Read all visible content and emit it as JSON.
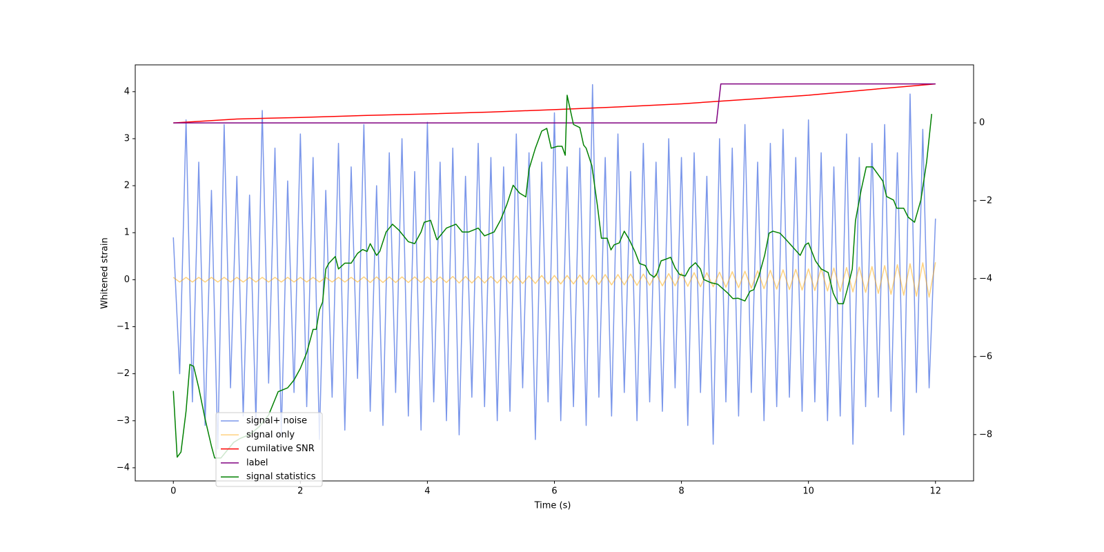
{
  "chart_data": {
    "type": "line",
    "xlabel": "Time (s)",
    "ylabel": "Whitened strain",
    "xlim": [
      -0.6,
      12.6
    ],
    "xticks": [
      0,
      2,
      4,
      6,
      8,
      10,
      12
    ],
    "ylim": [
      -4.28,
      4.57
    ],
    "yticks": [
      {
        "value": -4,
        "label": "−4"
      },
      {
        "value": -3,
        "label": "−3"
      },
      {
        "value": -2,
        "label": "−2"
      },
      {
        "value": -1,
        "label": "−1"
      },
      0,
      1,
      2,
      3,
      4
    ],
    "y2lim": [
      -9.19,
      1.49
    ],
    "y2ticks": [
      {
        "value": -8,
        "label": "−8"
      },
      {
        "value": -6,
        "label": "−6"
      },
      {
        "value": -4,
        "label": "−4"
      },
      {
        "value": -2,
        "label": "−2"
      },
      0
    ],
    "x": [
      0,
      0.1,
      0.2,
      0.3,
      0.4,
      0.5,
      0.6,
      0.7,
      0.8,
      0.9,
      1,
      1.1,
      1.2,
      1.3,
      1.4,
      1.5,
      1.6,
      1.7,
      1.8,
      1.9,
      2,
      2.1,
      2.2,
      2.3,
      2.4,
      2.5,
      2.6,
      2.7,
      2.8,
      2.9,
      3,
      3.1,
      3.2,
      3.3,
      3.4,
      3.5,
      3.6,
      3.7,
      3.8,
      3.9,
      4,
      4.1,
      4.2,
      4.3,
      4.4,
      4.5,
      4.6,
      4.7,
      4.8,
      4.9,
      5,
      5.1,
      5.2,
      5.3,
      5.4,
      5.5,
      5.6,
      5.7,
      5.8,
      5.9,
      6,
      6.1,
      6.2,
      6.3,
      6.4,
      6.5,
      6.6,
      6.7,
      6.8,
      6.9,
      7,
      7.1,
      7.2,
      7.3,
      7.4,
      7.5,
      7.6,
      7.7,
      7.8,
      7.9,
      8,
      8.1,
      8.2,
      8.3,
      8.4,
      8.5,
      8.6,
      8.7,
      8.8,
      8.9,
      9,
      9.1,
      9.2,
      9.3,
      9.4,
      9.5,
      9.6,
      9.7,
      9.8,
      9.9,
      10,
      10.1,
      10.2,
      10.3,
      10.4,
      10.5,
      10.6,
      10.7,
      10.8,
      10.9,
      11,
      11.1,
      11.2,
      11.3,
      11.4,
      11.5,
      11.6,
      11.7,
      11.8,
      11.9,
      12
    ],
    "series": [
      {
        "name": "signal+ noise",
        "color": "#4169e1",
        "opacity": 0.7,
        "values": [
          0.9,
          -2.0,
          3.4,
          -2.6,
          2.5,
          -3.1,
          1.9,
          -3.6,
          3.3,
          -2.3,
          2.2,
          -2.9,
          1.8,
          -3.0,
          3.6,
          -2.2,
          2.8,
          -3.3,
          2.1,
          -2.4,
          3.1,
          -2.7,
          2.6,
          -3.4,
          1.9,
          -2.5,
          2.9,
          -3.2,
          2.4,
          -2.1,
          3.3,
          -2.8,
          2.0,
          -3.1,
          2.7,
          -2.4,
          3.0,
          -2.9,
          2.3,
          -3.2,
          3.35,
          -2.6,
          2.5,
          -3.0,
          2.8,
          -3.3,
          2.2,
          -2.5,
          2.9,
          -2.7,
          2.6,
          -3.0,
          2.4,
          -2.8,
          3.1,
          -2.3,
          2.7,
          -3.4,
          2.5,
          -2.6,
          3.55,
          -3.0,
          2.4,
          -2.7,
          2.8,
          -3.1,
          4.15,
          -2.5,
          2.6,
          -2.9,
          3.1,
          -2.4,
          2.3,
          -3.0,
          2.9,
          -2.6,
          2.5,
          -2.8,
          3.0,
          -2.3,
          2.6,
          -3.1,
          2.7,
          -2.4,
          2.2,
          -3.5,
          3.0,
          -2.6,
          2.8,
          -2.9,
          3.3,
          -2.4,
          2.5,
          -3.0,
          2.9,
          -2.7,
          3.2,
          -2.5,
          2.6,
          -2.8,
          3.4,
          -2.6,
          2.7,
          -3.0,
          2.4,
          -2.9,
          3.1,
          -3.5,
          2.6,
          -2.7,
          2.9,
          -2.5,
          3.3,
          -2.8,
          2.7,
          -3.3,
          3.95,
          -2.4,
          3.2,
          -2.3,
          1.3
        ]
      },
      {
        "name": "signal only",
        "color": "#ffa500",
        "opacity": 0.5,
        "values": [
          0.05,
          -0.05,
          0.05,
          -0.05,
          0.05,
          -0.05,
          0.05,
          -0.05,
          0.05,
          -0.05,
          0.05,
          -0.05,
          0.05,
          -0.05,
          0.05,
          -0.05,
          0.05,
          -0.05,
          0.05,
          -0.05,
          0.05,
          -0.05,
          0.05,
          -0.05,
          0.05,
          -0.05,
          0.05,
          -0.05,
          0.05,
          -0.05,
          0.06,
          -0.06,
          0.06,
          -0.06,
          0.06,
          -0.06,
          0.06,
          -0.06,
          0.06,
          -0.06,
          0.06,
          -0.06,
          0.06,
          -0.06,
          0.07,
          -0.07,
          0.07,
          -0.07,
          0.07,
          -0.07,
          0.07,
          -0.07,
          0.08,
          -0.08,
          0.08,
          -0.08,
          0.08,
          -0.08,
          0.09,
          -0.09,
          0.09,
          -0.09,
          0.09,
          -0.09,
          0.1,
          -0.1,
          0.1,
          -0.1,
          0.11,
          -0.11,
          0.11,
          -0.11,
          0.12,
          -0.12,
          0.12,
          -0.12,
          0.13,
          -0.13,
          0.13,
          -0.13,
          0.14,
          -0.14,
          0.15,
          -0.15,
          0.15,
          -0.15,
          0.16,
          -0.16,
          0.17,
          -0.17,
          0.18,
          -0.18,
          0.19,
          -0.19,
          0.2,
          -0.2,
          0.21,
          -0.21,
          0.22,
          -0.22,
          0.23,
          -0.23,
          0.24,
          -0.24,
          0.25,
          -0.25,
          0.26,
          -0.26,
          0.27,
          -0.27,
          0.28,
          -0.29,
          0.3,
          -0.31,
          0.32,
          -0.33,
          0.34,
          -0.35,
          0.36,
          -0.37,
          0.37
        ]
      },
      {
        "name": "cumilative SNR",
        "color": "#ff0000",
        "axis": "y2",
        "x": [
          0,
          1,
          2,
          3,
          4,
          5,
          6,
          7,
          8,
          9,
          10,
          11,
          11.5,
          12
        ],
        "values": [
          0.0,
          0.1,
          0.14,
          0.19,
          0.23,
          0.28,
          0.34,
          0.41,
          0.49,
          0.6,
          0.71,
          0.86,
          0.93,
          1.0
        ]
      },
      {
        "name": "label",
        "color": "#800080",
        "axis": "y2",
        "x": [
          0,
          8.55,
          8.62,
          12
        ],
        "values": [
          0,
          0,
          1,
          1
        ]
      },
      {
        "name": "signal statistics",
        "color": "#008000",
        "axis": "y2",
        "x": [
          0,
          0.06,
          0.12,
          0.2,
          0.26,
          0.32,
          0.4,
          0.5,
          0.6,
          0.65,
          0.75,
          0.85,
          0.95,
          1.05,
          1.2,
          1.35,
          1.5,
          1.6,
          1.65,
          1.8,
          1.9,
          2.0,
          2.1,
          2.2,
          2.25,
          2.3,
          2.35,
          2.4,
          2.45,
          2.55,
          2.6,
          2.7,
          2.8,
          2.9,
          2.98,
          3.05,
          3.1,
          3.2,
          3.25,
          3.35,
          3.45,
          3.55,
          3.7,
          3.8,
          3.9,
          3.95,
          4.05,
          4.15,
          4.2,
          4.3,
          4.45,
          4.55,
          4.65,
          4.8,
          4.9,
          5.05,
          5.15,
          5.25,
          5.35,
          5.45,
          5.55,
          5.6,
          5.7,
          5.8,
          5.88,
          5.95,
          6.05,
          6.12,
          6.17,
          6.2,
          6.3,
          6.4,
          6.46,
          6.5,
          6.59,
          6.68,
          6.74,
          6.83,
          6.89,
          6.94,
          7.02,
          7.1,
          7.18,
          7.27,
          7.34,
          7.43,
          7.5,
          7.57,
          7.61,
          7.68,
          7.75,
          7.83,
          7.9,
          7.97,
          8.06,
          8.13,
          8.22,
          8.3,
          8.35,
          8.46,
          8.57,
          8.73,
          8.81,
          8.89,
          9.0,
          9.08,
          9.14,
          9.22,
          9.31,
          9.38,
          9.44,
          9.55,
          9.65,
          9.76,
          9.87,
          9.95,
          10.0,
          10.11,
          10.2,
          10.31,
          10.39,
          10.47,
          10.55,
          10.61,
          10.69,
          10.74,
          10.83,
          10.91,
          11.01,
          11.09,
          11.17,
          11.23,
          11.34,
          11.39,
          11.5,
          11.57,
          11.67,
          11.77,
          11.86,
          11.94
        ],
        "values": [
          -6.88,
          -8.58,
          -8.45,
          -7.4,
          -6.2,
          -6.25,
          -6.8,
          -7.6,
          -8.3,
          -8.6,
          -8.6,
          -8.4,
          -8.2,
          -8.1,
          -8.0,
          -7.8,
          -7.5,
          -7.1,
          -6.9,
          -6.8,
          -6.6,
          -6.3,
          -5.9,
          -5.3,
          -5.3,
          -4.8,
          -4.6,
          -3.75,
          -3.6,
          -3.43,
          -3.75,
          -3.6,
          -3.6,
          -3.35,
          -3.25,
          -3.3,
          -3.1,
          -3.4,
          -3.3,
          -2.8,
          -2.6,
          -2.75,
          -3.05,
          -3.1,
          -2.8,
          -2.55,
          -2.5,
          -3.0,
          -2.9,
          -2.7,
          -2.6,
          -2.8,
          -2.8,
          -2.7,
          -2.9,
          -2.8,
          -2.5,
          -2.1,
          -1.6,
          -1.8,
          -1.9,
          -1.19,
          -0.65,
          -0.21,
          -0.14,
          -0.65,
          -0.6,
          -0.6,
          -0.83,
          0.71,
          -0.04,
          -0.12,
          -0.57,
          -0.65,
          -1.1,
          -2.16,
          -2.96,
          -2.96,
          -3.26,
          -3.13,
          -3.08,
          -2.78,
          -3.0,
          -3.31,
          -3.61,
          -3.66,
          -3.88,
          -3.96,
          -3.89,
          -3.54,
          -3.5,
          -3.45,
          -3.72,
          -3.89,
          -3.93,
          -3.72,
          -3.59,
          -3.75,
          -4.02,
          -4.1,
          -4.14,
          -4.37,
          -4.51,
          -4.5,
          -4.57,
          -4.32,
          -4.28,
          -3.93,
          -3.4,
          -2.83,
          -2.78,
          -2.83,
          -3.0,
          -3.2,
          -3.4,
          -3.13,
          -3.08,
          -3.54,
          -3.75,
          -3.84,
          -4.37,
          -4.64,
          -4.64,
          -4.28,
          -3.75,
          -2.51,
          -1.72,
          -1.13,
          -1.13,
          -1.31,
          -1.49,
          -1.89,
          -1.98,
          -2.19,
          -2.19,
          -2.42,
          -2.55,
          -1.98,
          -1.01,
          0.23
        ]
      }
    ]
  }
}
